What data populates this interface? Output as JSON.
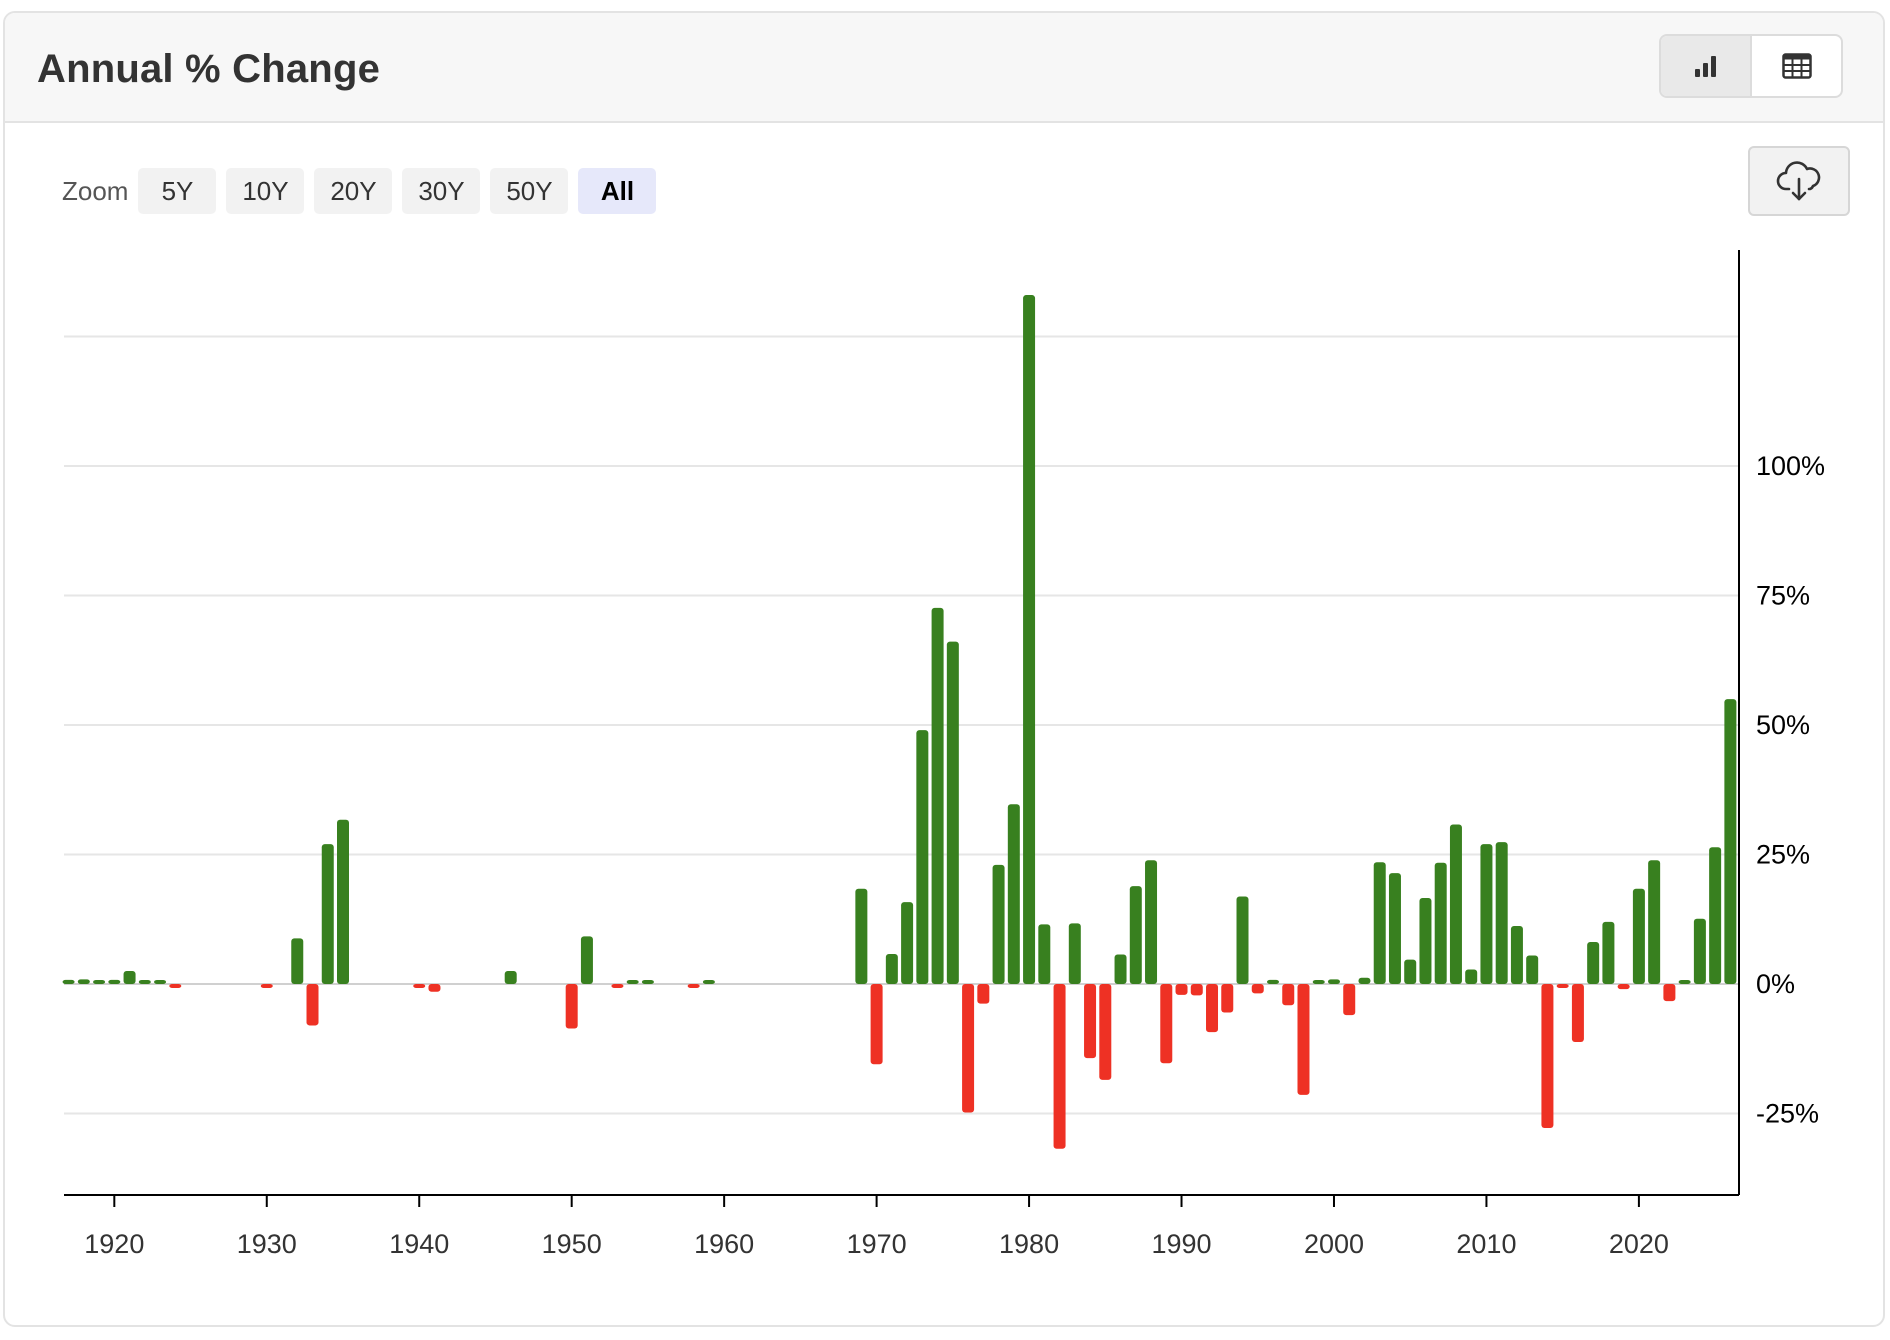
{
  "header": {
    "title": "Annual % Change"
  },
  "view_toggle": {
    "items": [
      {
        "name": "bar-chart-icon",
        "active": true
      },
      {
        "name": "table-icon",
        "active": false
      }
    ]
  },
  "zoom": {
    "label": "Zoom",
    "options": [
      "5Y",
      "10Y",
      "20Y",
      "30Y",
      "50Y",
      "All"
    ],
    "selected": "All"
  },
  "download": {
    "icon": "cloud-download-icon"
  },
  "colors": {
    "positive": "#38801f",
    "negative": "#ee3124",
    "grid": "#e6e6e6",
    "axis": "#000000"
  },
  "chart_data": {
    "type": "bar",
    "title": "Annual % Change",
    "xlabel": "",
    "ylabel": "",
    "xlim": [
      1916.7,
      2026.5
    ],
    "ylim": [
      -40,
      133
    ],
    "grid": true,
    "legend": "none",
    "x_ticks": [
      1920,
      1930,
      1940,
      1950,
      1960,
      1970,
      1980,
      1990,
      2000,
      2010,
      2020
    ],
    "y_ticks": [
      -25,
      0,
      25,
      50,
      75,
      100,
      125
    ],
    "y_tick_labels": [
      "-25%",
      "0%",
      "25%",
      "50%",
      "75%",
      "100%",
      ""
    ],
    "x": [
      1917,
      1918,
      1919,
      1920,
      1921,
      1922,
      1923,
      1924,
      1930,
      1932,
      1933,
      1934,
      1935,
      1940,
      1941,
      1946,
      1950,
      1951,
      1953,
      1954,
      1955,
      1958,
      1959,
      1969,
      1970,
      1971,
      1972,
      1973,
      1974,
      1975,
      1976,
      1977,
      1978,
      1979,
      1980,
      1981,
      1982,
      1983,
      1984,
      1985,
      1986,
      1987,
      1988,
      1989,
      1990,
      1991,
      1992,
      1993,
      1994,
      1995,
      1996,
      1997,
      1998,
      1999,
      2000,
      2001,
      2002,
      2003,
      2004,
      2005,
      2006,
      2007,
      2008,
      2009,
      2010,
      2011,
      2012,
      2013,
      2014,
      2015,
      2016,
      2017,
      2018,
      2019,
      2020,
      2021,
      2022,
      2023,
      2024,
      2025,
      2026
    ],
    "values": [
      0.8,
      0.9,
      0.6,
      0.8,
      2.5,
      0.4,
      0.5,
      -0.4,
      -0.5,
      8.8,
      -8.0,
      27.0,
      31.7,
      -0.6,
      -1.5,
      2.5,
      -8.6,
      9.2,
      -0.5,
      0.6,
      0.5,
      -0.6,
      0.5,
      18.4,
      -15.5,
      5.8,
      15.8,
      49.0,
      72.6,
      66.1,
      -24.8,
      -3.8,
      23.0,
      34.7,
      133.0,
      11.5,
      -31.8,
      11.7,
      -14.3,
      -18.5,
      5.7,
      18.9,
      23.9,
      -15.3,
      -2.1,
      -2.2,
      -9.3,
      -5.5,
      16.9,
      -1.8,
      0.8,
      -4.1,
      -21.4,
      0.2,
      0.9,
      -6.0,
      1.2,
      23.5,
      21.4,
      4.7,
      16.6,
      23.4,
      30.8,
      2.8,
      27.0,
      27.4,
      11.2,
      5.5,
      -27.8,
      -0.5,
      -11.2,
      8.1,
      12.0,
      -1.0,
      18.4,
      23.9,
      -3.3,
      0.3,
      12.6,
      26.4,
      55.0
    ]
  }
}
